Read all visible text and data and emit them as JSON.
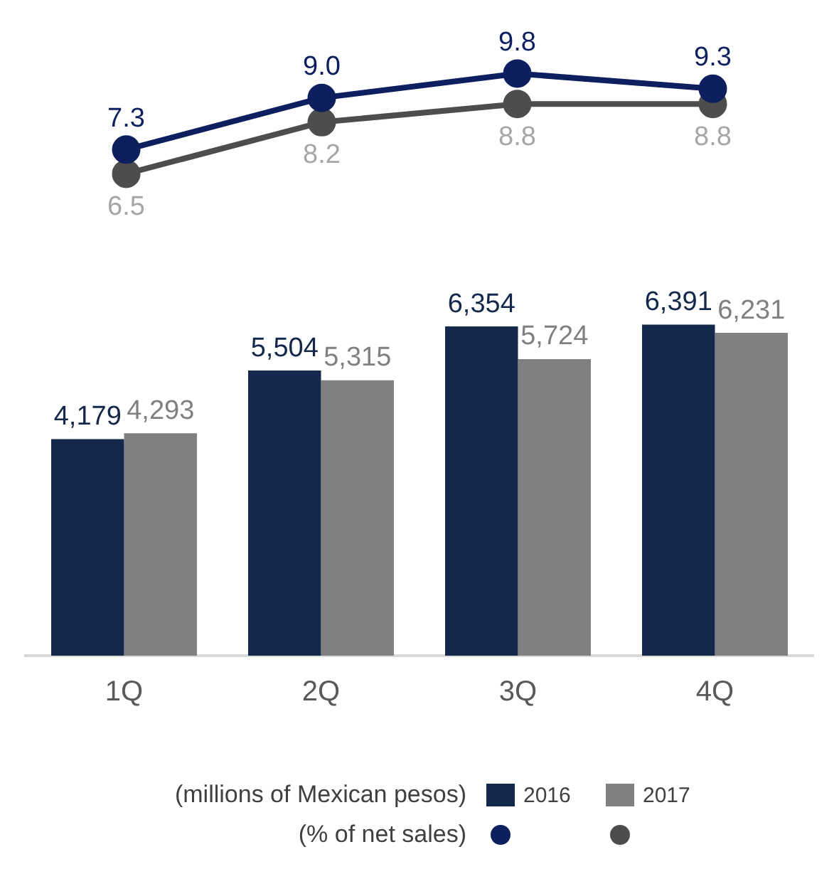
{
  "chart_data": [
    {
      "type": "line",
      "categories": [
        null,
        null,
        null,
        null
      ],
      "legend_title": "(% of net sales)",
      "marker": "circle",
      "grid": false,
      "series": [
        {
          "color": "#0d1f5e",
          "values": [
            7.3,
            9.0,
            9.8,
            9.3
          ],
          "value_labels": [
            "7.3",
            "9.0",
            "9.8",
            "9.3"
          ]
        },
        {
          "color": "#4d4d4d",
          "values": [
            6.5,
            8.2,
            8.8,
            8.8
          ],
          "value_labels": [
            "6.5",
            "8.2",
            "8.8",
            "8.8"
          ]
        }
      ]
    },
    {
      "type": "bar",
      "categories": [
        "1Q",
        "2Q",
        "3Q",
        "4Q"
      ],
      "legend_title": "(millions of Mexican pesos)",
      "grid": false,
      "legend": "bottom",
      "series": [
        {
          "name": "2016",
          "color": "#14284b",
          "values": [
            4179,
            5504,
            6354,
            6391
          ],
          "value_labels": [
            "4,179",
            "5,504",
            "6,354",
            "6,391"
          ]
        },
        {
          "name": "2017",
          "color": "#808080",
          "values": [
            4293,
            5315,
            5724,
            6231
          ],
          "value_labels": [
            "4,293",
            "5,315",
            "5,724",
            "6,231"
          ]
        }
      ]
    }
  ]
}
